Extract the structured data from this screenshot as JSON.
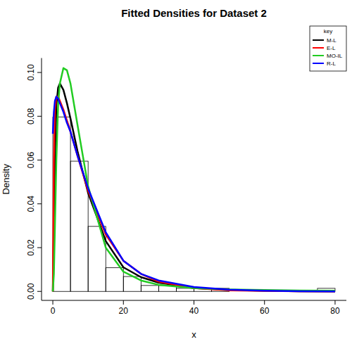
{
  "chart_data": {
    "type": "histogram",
    "title": "Fitted Densities for Dataset 2",
    "x_label": "x",
    "y_label": "Density",
    "legend_title": "key",
    "legend": "topright",
    "bins": [
      0,
      5,
      10,
      15,
      20,
      25,
      30,
      35,
      40,
      45,
      50,
      55,
      60,
      65,
      70,
      75,
      80
    ],
    "values": [
      0.0797,
      0.0595,
      0.0297,
      0.0108,
      0.0068,
      0.0027,
      0.0027,
      0.0014,
      0.0014,
      0.0014,
      0,
      0,
      0,
      0,
      0,
      0.0014
    ],
    "x": [
      0,
      0.3,
      0.6,
      1,
      1.5,
      2,
      3,
      4,
      5,
      7,
      10,
      15,
      20,
      25,
      30,
      40,
      50,
      60,
      70,
      80
    ],
    "series": [
      {
        "name": "M-L",
        "color": "#000000",
        "type": "line",
        "values": [
          0,
          0.03,
          0.06,
          0.085,
          0.093,
          0.095,
          0.092,
          0.086,
          0.079,
          0.064,
          0.045,
          0.023,
          0.011,
          0.0065,
          0.004,
          0.0015,
          0.0006,
          0.0003,
          0.0001,
          0
        ]
      },
      {
        "name": "E-L",
        "color": "#ff0000",
        "type": "line",
        "values": [
          0,
          0.06,
          0.083,
          0.089,
          0.089,
          0.087,
          0.083,
          0.078,
          0.073,
          0.062,
          0.046,
          0.026,
          0.014,
          0.008,
          0.0045,
          0.0015,
          0.0005,
          0.0002,
          0.0001,
          0
        ]
      },
      {
        "name": "MO-IL",
        "color": "#22cc22",
        "type": "line",
        "values": [
          0,
          0.008,
          0.03,
          0.06,
          0.085,
          0.095,
          0.102,
          0.101,
          0.095,
          0.076,
          0.048,
          0.02,
          0.009,
          0.005,
          0.003,
          0.0015,
          0.0009,
          0.0006,
          0.0004,
          0.0003
        ]
      },
      {
        "name": "R-L",
        "color": "#0000ff",
        "type": "line",
        "values": [
          0.072,
          0.082,
          0.087,
          0.089,
          0.088,
          0.086,
          0.082,
          0.077,
          0.073,
          0.062,
          0.047,
          0.027,
          0.014,
          0.008,
          0.005,
          0.002,
          0.0008,
          0.0003,
          0.0001,
          0
        ]
      }
    ],
    "xlim": [
      -3.2,
      83.2
    ],
    "ylim": [
      -0.0041,
      0.1066
    ],
    "xticks": [
      0,
      20,
      40,
      60,
      80
    ],
    "yticks": [
      {
        "value": 0,
        "label": "0.00"
      },
      {
        "value": 0.02,
        "label": "0.02"
      },
      {
        "value": 0.04,
        "label": "0.04"
      },
      {
        "value": 0.06,
        "label": "0.06"
      },
      {
        "value": 0.08,
        "label": "0.08"
      },
      {
        "value": 0.1,
        "label": "0.10"
      }
    ]
  }
}
